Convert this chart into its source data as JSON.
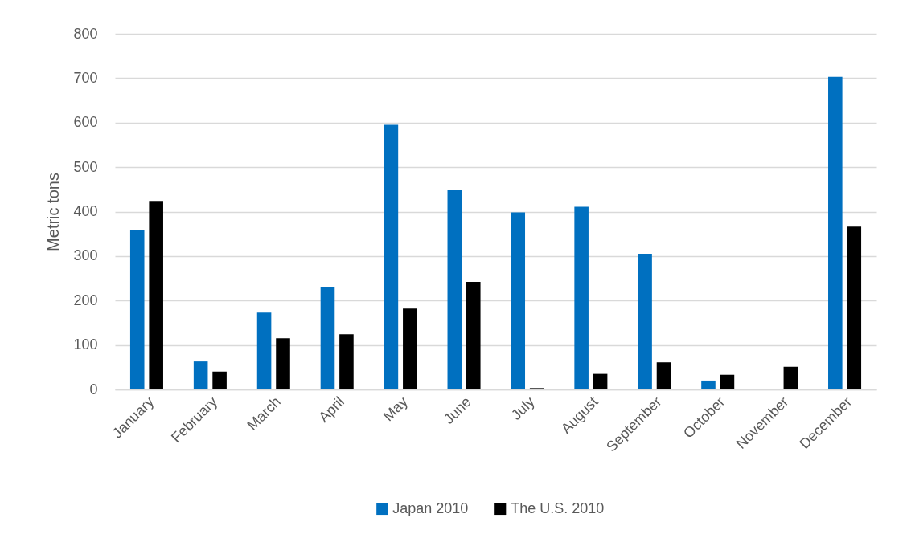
{
  "chart_data": {
    "type": "bar",
    "ylabel": "Metric tons",
    "categories": [
      "January",
      "February",
      "March",
      "April",
      "May",
      "June",
      "July",
      "August",
      "September",
      "October",
      "November",
      "December"
    ],
    "series": [
      {
        "name": "Japan 2010",
        "color": "#0070c0",
        "values": [
          358,
          63,
          173,
          230,
          595,
          449,
          398,
          411,
          305,
          20,
          null,
          703
        ]
      },
      {
        "name": "The U.S. 2010",
        "color": "#000000",
        "values": [
          424,
          40,
          115,
          124,
          182,
          242,
          3,
          35,
          61,
          33,
          51,
          366
        ]
      }
    ],
    "ylim": [
      0,
      800
    ],
    "yticks": [
      0,
      100,
      200,
      300,
      400,
      500,
      600,
      700,
      800
    ],
    "grid": "y",
    "legend": "bottom"
  }
}
